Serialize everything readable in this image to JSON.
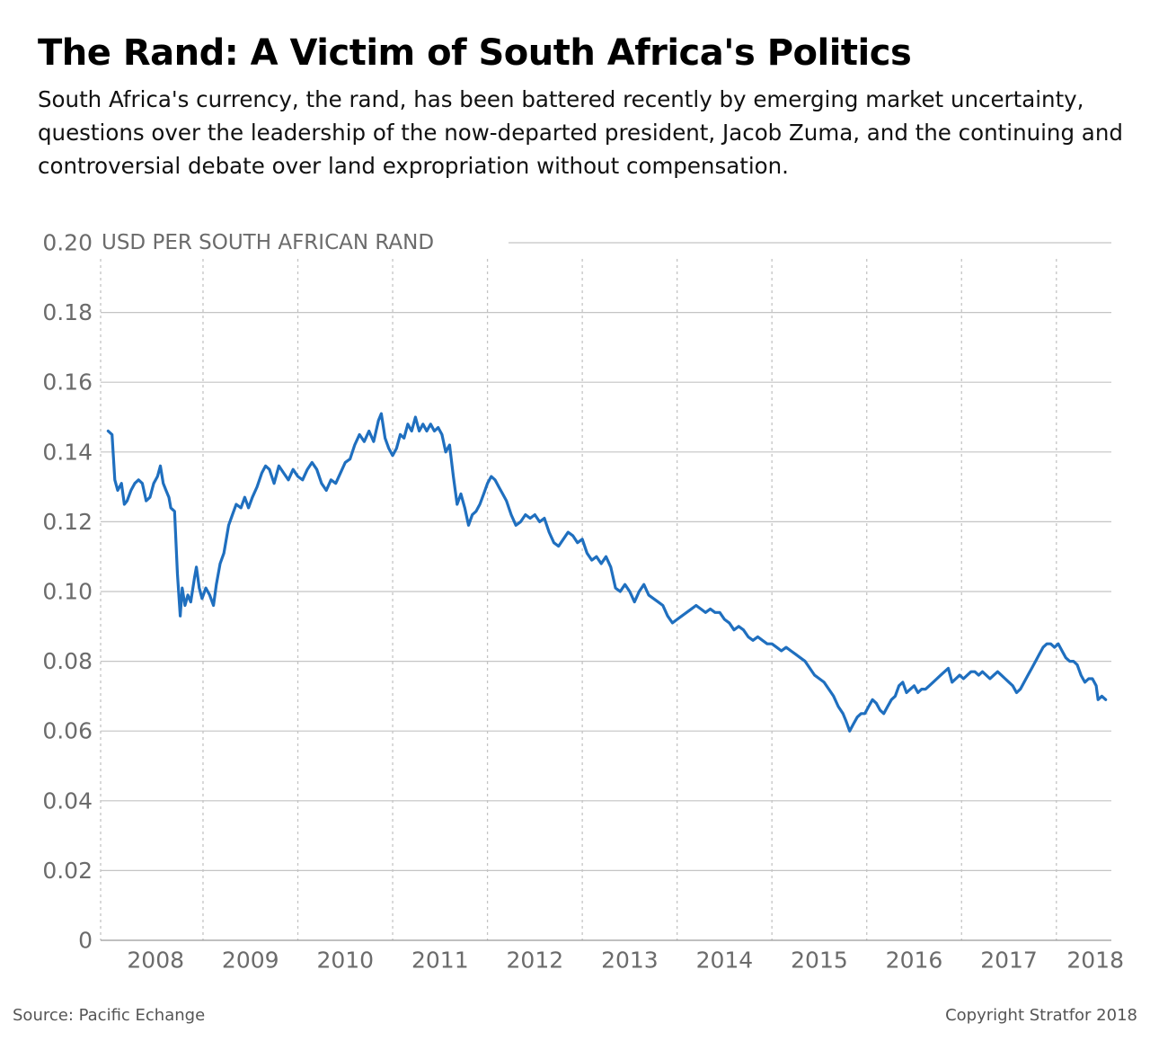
{
  "header": {
    "title": "The Rand: A Victim of South Africa's Politics",
    "subtitle": "South Africa's currency, the rand, has been battered recently by emerging market uncertainty, questions over the leadership of the now-departed president, Jacob Zuma, and the continuing and controversial debate over land expropriation without compensation."
  },
  "footer": {
    "source": "Source: Pacific Echange",
    "copyright": "Copyright Stratfor 2018"
  },
  "colors": {
    "line": "#1f6fbf",
    "grid": "#c4c4c4",
    "tick_text": "#6b6b6b"
  },
  "chart_data": {
    "type": "line",
    "title": "The Rand: A Victim of South Africa's Politics",
    "ylabel": "USD PER SOUTH AFRICAN RAND",
    "xlabel": "",
    "ylim": [
      0,
      0.2
    ],
    "xlim": [
      2007.92,
      2018.58
    ],
    "grid": "horizontal solid, vertical dotted at year boundaries",
    "legend": "none",
    "y_ticks": [
      "0",
      "0.02",
      "0.04",
      "0.06",
      "0.08",
      "0.10",
      "0.12",
      "0.14",
      "0.16",
      "0.18",
      "0.20"
    ],
    "y_tick_values": [
      0,
      0.02,
      0.04,
      0.06,
      0.08,
      0.1,
      0.12,
      0.14,
      0.16,
      0.18,
      0.2
    ],
    "x_ticks": [
      "2008",
      "2009",
      "2010",
      "2011",
      "2012",
      "2013",
      "2014",
      "2015",
      "2016",
      "2017",
      "2018"
    ],
    "x_tick_values": [
      2008.5,
      2009.5,
      2010.5,
      2011.5,
      2012.5,
      2013.5,
      2014.5,
      2015.5,
      2016.5,
      2017.5,
      2018.5
    ],
    "year_boundaries": [
      2009,
      2010,
      2011,
      2012,
      2013,
      2014,
      2015,
      2016,
      2017,
      2018
    ],
    "series": [
      {
        "values": [
          [
            2008.0,
            0.146
          ],
          [
            2008.04,
            0.145
          ],
          [
            2008.07,
            0.132
          ],
          [
            2008.1,
            0.129
          ],
          [
            2008.14,
            0.131
          ],
          [
            2008.17,
            0.125
          ],
          [
            2008.2,
            0.126
          ],
          [
            2008.24,
            0.129
          ],
          [
            2008.28,
            0.131
          ],
          [
            2008.32,
            0.132
          ],
          [
            2008.36,
            0.131
          ],
          [
            2008.4,
            0.126
          ],
          [
            2008.44,
            0.127
          ],
          [
            2008.48,
            0.131
          ],
          [
            2008.52,
            0.133
          ],
          [
            2008.55,
            0.136
          ],
          [
            2008.58,
            0.131
          ],
          [
            2008.61,
            0.129
          ],
          [
            2008.64,
            0.127
          ],
          [
            2008.66,
            0.124
          ],
          [
            2008.7,
            0.123
          ],
          [
            2008.73,
            0.105
          ],
          [
            2008.76,
            0.093
          ],
          [
            2008.78,
            0.101
          ],
          [
            2008.81,
            0.096
          ],
          [
            2008.84,
            0.099
          ],
          [
            2008.87,
            0.097
          ],
          [
            2008.91,
            0.104
          ],
          [
            2008.93,
            0.107
          ],
          [
            2008.96,
            0.101
          ],
          [
            2008.99,
            0.098
          ],
          [
            2009.03,
            0.101
          ],
          [
            2009.07,
            0.099
          ],
          [
            2009.11,
            0.096
          ],
          [
            2009.14,
            0.102
          ],
          [
            2009.18,
            0.108
          ],
          [
            2009.22,
            0.111
          ],
          [
            2009.27,
            0.119
          ],
          [
            2009.31,
            0.122
          ],
          [
            2009.35,
            0.125
          ],
          [
            2009.4,
            0.124
          ],
          [
            2009.44,
            0.127
          ],
          [
            2009.48,
            0.124
          ],
          [
            2009.52,
            0.127
          ],
          [
            2009.57,
            0.13
          ],
          [
            2009.62,
            0.134
          ],
          [
            2009.66,
            0.136
          ],
          [
            2009.7,
            0.135
          ],
          [
            2009.75,
            0.131
          ],
          [
            2009.8,
            0.136
          ],
          [
            2009.85,
            0.134
          ],
          [
            2009.9,
            0.132
          ],
          [
            2009.95,
            0.135
          ],
          [
            2010.0,
            0.133
          ],
          [
            2010.05,
            0.132
          ],
          [
            2010.1,
            0.135
          ],
          [
            2010.15,
            0.137
          ],
          [
            2010.2,
            0.135
          ],
          [
            2010.25,
            0.131
          ],
          [
            2010.3,
            0.129
          ],
          [
            2010.35,
            0.132
          ],
          [
            2010.4,
            0.131
          ],
          [
            2010.45,
            0.134
          ],
          [
            2010.5,
            0.137
          ],
          [
            2010.55,
            0.138
          ],
          [
            2010.6,
            0.142
          ],
          [
            2010.65,
            0.145
          ],
          [
            2010.7,
            0.143
          ],
          [
            2010.75,
            0.146
          ],
          [
            2010.8,
            0.143
          ],
          [
            2010.85,
            0.149
          ],
          [
            2010.88,
            0.151
          ],
          [
            2010.92,
            0.144
          ],
          [
            2010.96,
            0.141
          ],
          [
            2011.0,
            0.139
          ],
          [
            2011.04,
            0.141
          ],
          [
            2011.08,
            0.145
          ],
          [
            2011.12,
            0.144
          ],
          [
            2011.16,
            0.148
          ],
          [
            2011.2,
            0.146
          ],
          [
            2011.24,
            0.15
          ],
          [
            2011.28,
            0.146
          ],
          [
            2011.32,
            0.148
          ],
          [
            2011.36,
            0.146
          ],
          [
            2011.4,
            0.148
          ],
          [
            2011.44,
            0.146
          ],
          [
            2011.48,
            0.147
          ],
          [
            2011.52,
            0.145
          ],
          [
            2011.56,
            0.14
          ],
          [
            2011.6,
            0.142
          ],
          [
            2011.64,
            0.133
          ],
          [
            2011.68,
            0.125
          ],
          [
            2011.72,
            0.128
          ],
          [
            2011.76,
            0.124
          ],
          [
            2011.8,
            0.119
          ],
          [
            2011.84,
            0.122
          ],
          [
            2011.88,
            0.123
          ],
          [
            2011.92,
            0.125
          ],
          [
            2011.96,
            0.128
          ],
          [
            2012.0,
            0.131
          ],
          [
            2012.04,
            0.133
          ],
          [
            2012.08,
            0.132
          ],
          [
            2012.12,
            0.13
          ],
          [
            2012.16,
            0.128
          ],
          [
            2012.2,
            0.126
          ],
          [
            2012.25,
            0.122
          ],
          [
            2012.3,
            0.119
          ],
          [
            2012.35,
            0.12
          ],
          [
            2012.4,
            0.122
          ],
          [
            2012.45,
            0.121
          ],
          [
            2012.5,
            0.122
          ],
          [
            2012.55,
            0.12
          ],
          [
            2012.6,
            0.121
          ],
          [
            2012.65,
            0.117
          ],
          [
            2012.7,
            0.114
          ],
          [
            2012.75,
            0.113
          ],
          [
            2012.8,
            0.115
          ],
          [
            2012.85,
            0.117
          ],
          [
            2012.9,
            0.116
          ],
          [
            2012.95,
            0.114
          ],
          [
            2013.0,
            0.115
          ],
          [
            2013.05,
            0.111
          ],
          [
            2013.1,
            0.109
          ],
          [
            2013.15,
            0.11
          ],
          [
            2013.2,
            0.108
          ],
          [
            2013.25,
            0.11
          ],
          [
            2013.3,
            0.107
          ],
          [
            2013.35,
            0.101
          ],
          [
            2013.4,
            0.1
          ],
          [
            2013.45,
            0.102
          ],
          [
            2013.5,
            0.1
          ],
          [
            2013.55,
            0.097
          ],
          [
            2013.6,
            0.1
          ],
          [
            2013.65,
            0.102
          ],
          [
            2013.7,
            0.099
          ],
          [
            2013.75,
            0.098
          ],
          [
            2013.8,
            0.097
          ],
          [
            2013.85,
            0.096
          ],
          [
            2013.9,
            0.093
          ],
          [
            2013.95,
            0.091
          ],
          [
            2014.0,
            0.092
          ],
          [
            2014.05,
            0.093
          ],
          [
            2014.1,
            0.094
          ],
          [
            2014.15,
            0.095
          ],
          [
            2014.2,
            0.096
          ],
          [
            2014.25,
            0.095
          ],
          [
            2014.3,
            0.094
          ],
          [
            2014.35,
            0.095
          ],
          [
            2014.4,
            0.094
          ],
          [
            2014.45,
            0.094
          ],
          [
            2014.5,
            0.092
          ],
          [
            2014.55,
            0.091
          ],
          [
            2014.6,
            0.089
          ],
          [
            2014.65,
            0.09
          ],
          [
            2014.7,
            0.089
          ],
          [
            2014.75,
            0.087
          ],
          [
            2014.8,
            0.086
          ],
          [
            2014.85,
            0.087
          ],
          [
            2014.9,
            0.086
          ],
          [
            2014.95,
            0.085
          ],
          [
            2015.0,
            0.085
          ],
          [
            2015.05,
            0.084
          ],
          [
            2015.1,
            0.083
          ],
          [
            2015.15,
            0.084
          ],
          [
            2015.2,
            0.083
          ],
          [
            2015.25,
            0.082
          ],
          [
            2015.3,
            0.081
          ],
          [
            2015.35,
            0.08
          ],
          [
            2015.4,
            0.078
          ],
          [
            2015.45,
            0.076
          ],
          [
            2015.5,
            0.075
          ],
          [
            2015.55,
            0.074
          ],
          [
            2015.6,
            0.072
          ],
          [
            2015.65,
            0.07
          ],
          [
            2015.7,
            0.067
          ],
          [
            2015.75,
            0.065
          ],
          [
            2015.78,
            0.063
          ],
          [
            2015.82,
            0.06
          ],
          [
            2015.86,
            0.062
          ],
          [
            2015.9,
            0.064
          ],
          [
            2015.94,
            0.065
          ],
          [
            2015.98,
            0.065
          ],
          [
            2016.02,
            0.067
          ],
          [
            2016.06,
            0.069
          ],
          [
            2016.1,
            0.068
          ],
          [
            2016.14,
            0.066
          ],
          [
            2016.18,
            0.065
          ],
          [
            2016.22,
            0.067
          ],
          [
            2016.26,
            0.069
          ],
          [
            2016.3,
            0.07
          ],
          [
            2016.34,
            0.073
          ],
          [
            2016.38,
            0.074
          ],
          [
            2016.42,
            0.071
          ],
          [
            2016.46,
            0.072
          ],
          [
            2016.5,
            0.073
          ],
          [
            2016.54,
            0.071
          ],
          [
            2016.58,
            0.072
          ],
          [
            2016.62,
            0.072
          ],
          [
            2016.66,
            0.073
          ],
          [
            2016.7,
            0.074
          ],
          [
            2016.74,
            0.075
          ],
          [
            2016.78,
            0.076
          ],
          [
            2016.82,
            0.077
          ],
          [
            2016.86,
            0.078
          ],
          [
            2016.9,
            0.074
          ],
          [
            2016.94,
            0.075
          ],
          [
            2016.98,
            0.076
          ],
          [
            2017.02,
            0.075
          ],
          [
            2017.06,
            0.076
          ],
          [
            2017.1,
            0.077
          ],
          [
            2017.14,
            0.077
          ],
          [
            2017.18,
            0.076
          ],
          [
            2017.22,
            0.077
          ],
          [
            2017.26,
            0.076
          ],
          [
            2017.3,
            0.075
          ],
          [
            2017.34,
            0.076
          ],
          [
            2017.38,
            0.077
          ],
          [
            2017.42,
            0.076
          ],
          [
            2017.46,
            0.075
          ],
          [
            2017.5,
            0.074
          ],
          [
            2017.54,
            0.073
          ],
          [
            2017.58,
            0.071
          ],
          [
            2017.62,
            0.072
          ],
          [
            2017.66,
            0.074
          ],
          [
            2017.7,
            0.076
          ],
          [
            2017.74,
            0.078
          ],
          [
            2017.78,
            0.08
          ],
          [
            2017.82,
            0.082
          ],
          [
            2017.86,
            0.084
          ],
          [
            2017.9,
            0.085
          ],
          [
            2017.94,
            0.085
          ],
          [
            2017.98,
            0.084
          ],
          [
            2018.02,
            0.085
          ],
          [
            2018.06,
            0.083
          ],
          [
            2018.1,
            0.081
          ],
          [
            2018.14,
            0.08
          ],
          [
            2018.18,
            0.08
          ],
          [
            2018.22,
            0.079
          ],
          [
            2018.26,
            0.076
          ],
          [
            2018.3,
            0.074
          ],
          [
            2018.34,
            0.075
          ],
          [
            2018.38,
            0.075
          ],
          [
            2018.42,
            0.073
          ],
          [
            2018.44,
            0.069
          ],
          [
            2018.48,
            0.07
          ],
          [
            2018.52,
            0.069
          ]
        ]
      }
    ]
  }
}
